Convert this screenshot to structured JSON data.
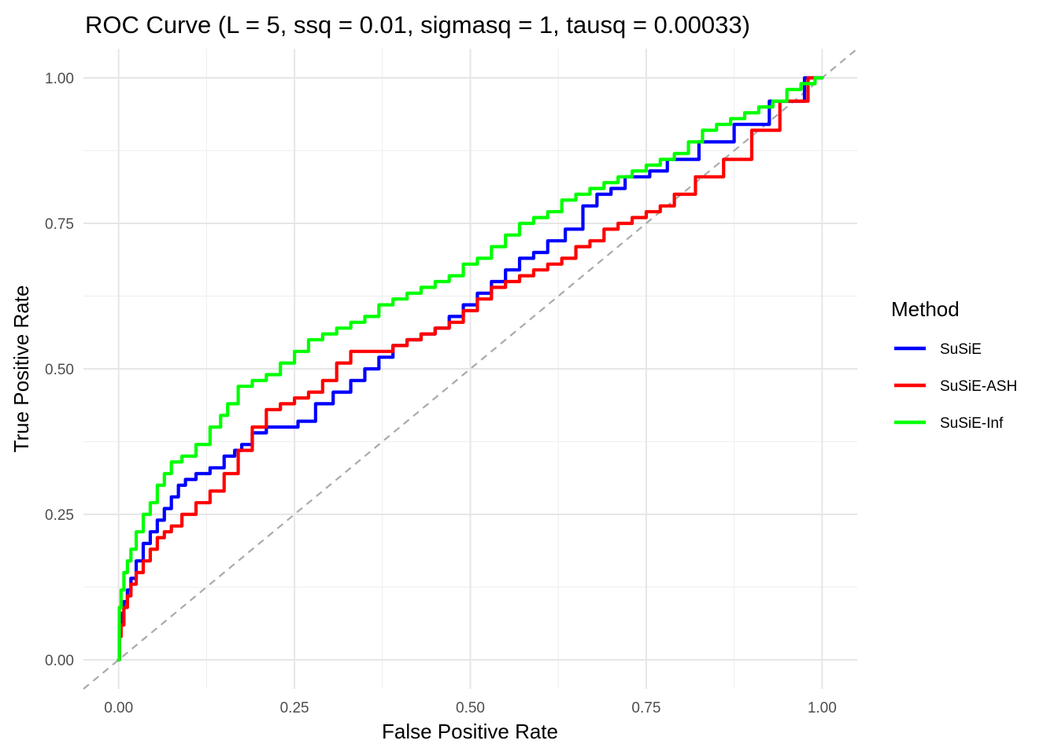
{
  "chart_data": {
    "type": "line",
    "title": "ROC Curve (L = 5, ssq = 0.01, sigmasq = 1, tausq = 0.00033)",
    "xlabel": "False Positive Rate",
    "ylabel": "True Positive Rate",
    "xlim": [
      -0.05,
      1.05
    ],
    "ylim": [
      -0.05,
      1.05
    ],
    "x_ticks": [
      0.0,
      0.25,
      0.5,
      0.75,
      1.0
    ],
    "y_ticks": [
      0.0,
      0.25,
      0.5,
      0.75,
      1.0
    ],
    "x_tick_labels": [
      "0.00",
      "0.25",
      "0.50",
      "0.75",
      "1.00"
    ],
    "y_tick_labels": [
      "0.00",
      "0.25",
      "0.50",
      "0.75",
      "1.00"
    ],
    "grid": true,
    "legend": {
      "title": "Method",
      "position": "right"
    },
    "reference_line": {
      "style": "dashed",
      "color": "#aaaaaa",
      "x": [
        -0.05,
        1.05
      ],
      "y": [
        -0.05,
        1.05
      ]
    },
    "series": [
      {
        "name": "SuSiE",
        "color": "#0000ff",
        "x": [
          0,
          0.002,
          0.005,
          0.01,
          0.015,
          0.02,
          0.03,
          0.04,
          0.05,
          0.06,
          0.07,
          0.08,
          0.09,
          0.1,
          0.12,
          0.14,
          0.16,
          0.17,
          0.18,
          0.2,
          0.22,
          0.24,
          0.27,
          0.29,
          0.32,
          0.34,
          0.36,
          0.38,
          0.4,
          0.42,
          0.44,
          0.46,
          0.48,
          0.5,
          0.52,
          0.54,
          0.56,
          0.58,
          0.6,
          0.62,
          0.65,
          0.67,
          0.69,
          0.71,
          0.73,
          0.75,
          0.76,
          0.8,
          0.85,
          0.9,
          0.95,
          1.0
        ],
        "y": [
          0,
          0.06,
          0.08,
          0.1,
          0.12,
          0.14,
          0.17,
          0.2,
          0.22,
          0.24,
          0.26,
          0.28,
          0.3,
          0.31,
          0.32,
          0.33,
          0.35,
          0.36,
          0.37,
          0.39,
          0.4,
          0.4,
          0.41,
          0.44,
          0.46,
          0.48,
          0.5,
          0.52,
          0.54,
          0.55,
          0.56,
          0.57,
          0.59,
          0.61,
          0.63,
          0.65,
          0.67,
          0.69,
          0.7,
          0.72,
          0.74,
          0.78,
          0.8,
          0.81,
          0.83,
          0.83,
          0.84,
          0.86,
          0.89,
          0.92,
          0.96,
          1.0
        ]
      },
      {
        "name": "SuSiE-ASH",
        "color": "#ff0000",
        "x": [
          0,
          0.002,
          0.005,
          0.01,
          0.015,
          0.02,
          0.03,
          0.04,
          0.05,
          0.06,
          0.07,
          0.08,
          0.1,
          0.12,
          0.14,
          0.16,
          0.18,
          0.2,
          0.22,
          0.24,
          0.26,
          0.28,
          0.3,
          0.32,
          0.34,
          0.36,
          0.38,
          0.4,
          0.42,
          0.44,
          0.46,
          0.48,
          0.5,
          0.52,
          0.54,
          0.56,
          0.58,
          0.6,
          0.62,
          0.64,
          0.66,
          0.68,
          0.7,
          0.72,
          0.74,
          0.76,
          0.78,
          0.8,
          0.84,
          0.88,
          0.92,
          0.96,
          1.0
        ],
        "y": [
          0,
          0.04,
          0.06,
          0.09,
          0.11,
          0.13,
          0.15,
          0.17,
          0.19,
          0.21,
          0.22,
          0.23,
          0.25,
          0.27,
          0.29,
          0.32,
          0.36,
          0.4,
          0.43,
          0.44,
          0.45,
          0.46,
          0.48,
          0.51,
          0.53,
          0.53,
          0.53,
          0.54,
          0.55,
          0.56,
          0.57,
          0.58,
          0.6,
          0.62,
          0.64,
          0.65,
          0.66,
          0.67,
          0.68,
          0.69,
          0.71,
          0.72,
          0.74,
          0.75,
          0.76,
          0.77,
          0.78,
          0.8,
          0.83,
          0.86,
          0.91,
          0.96,
          1.0
        ]
      },
      {
        "name": "SuSiE-Inf",
        "color": "#00ff00",
        "x": [
          0,
          0.002,
          0.005,
          0.01,
          0.015,
          0.02,
          0.03,
          0.04,
          0.05,
          0.06,
          0.07,
          0.08,
          0.1,
          0.12,
          0.14,
          0.15,
          0.16,
          0.18,
          0.2,
          0.22,
          0.24,
          0.26,
          0.28,
          0.3,
          0.32,
          0.34,
          0.36,
          0.38,
          0.4,
          0.42,
          0.44,
          0.46,
          0.48,
          0.5,
          0.52,
          0.54,
          0.56,
          0.58,
          0.6,
          0.62,
          0.64,
          0.66,
          0.68,
          0.7,
          0.72,
          0.74,
          0.76,
          0.78,
          0.8,
          0.82,
          0.84,
          0.86,
          0.88,
          0.9,
          0.92,
          0.94,
          0.96,
          0.98,
          1.0
        ],
        "y": [
          0,
          0.09,
          0.12,
          0.15,
          0.17,
          0.19,
          0.22,
          0.25,
          0.27,
          0.3,
          0.32,
          0.34,
          0.35,
          0.37,
          0.4,
          0.42,
          0.44,
          0.47,
          0.48,
          0.49,
          0.51,
          0.53,
          0.55,
          0.56,
          0.57,
          0.58,
          0.59,
          0.61,
          0.62,
          0.63,
          0.64,
          0.65,
          0.66,
          0.68,
          0.69,
          0.71,
          0.73,
          0.75,
          0.76,
          0.77,
          0.79,
          0.8,
          0.81,
          0.82,
          0.83,
          0.84,
          0.85,
          0.86,
          0.87,
          0.89,
          0.91,
          0.92,
          0.93,
          0.94,
          0.95,
          0.96,
          0.98,
          0.99,
          1.0
        ]
      }
    ]
  }
}
